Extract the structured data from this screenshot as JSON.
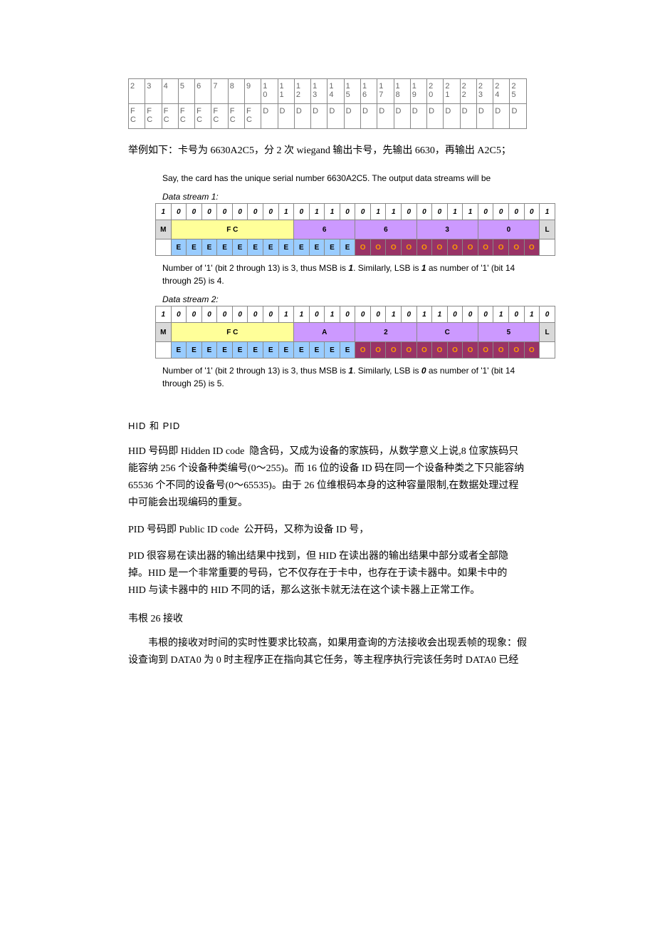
{
  "colors": {
    "bg_white": "#ffffff",
    "bg_grey": "#d9d9d9",
    "bg_yellow": "#ffff99",
    "bg_violet": "#cc99ff",
    "bg_blue": "#99ccff",
    "bg_magenta": "#993366",
    "fg_magenta_text": "#ff9900",
    "table_border": "#888888",
    "text_grey": "#666666"
  },
  "outline_table": {
    "row1": [
      "2",
      "3",
      "4",
      "5",
      "6",
      "7",
      "8",
      "9",
      "1\n0",
      "1\n1",
      "1\n2",
      "1\n3",
      "1\n4",
      "1\n5",
      "1\n6",
      "1\n7",
      "1\n8",
      "1\n9",
      "2\n0",
      "2\n1",
      "2\n2",
      "2\n3",
      "2\n4",
      "2\n5"
    ],
    "row2": [
      "F\nC",
      "F\nC",
      "F\nC",
      "F\nC",
      "F\nC",
      "F\nC",
      "F\nC",
      "F\nC",
      "D",
      "D",
      "D",
      "D",
      "D",
      "D",
      "D",
      "D",
      "D",
      "D",
      "D",
      "D",
      "D",
      "D",
      "D",
      "D"
    ]
  },
  "intro_cjk": "举例如下：卡号为 6630A2C5，分 2 次 wiegand 输出卡号，先输出 6630，再输出 A2C5；",
  "sans_intro": "Say, the card has the unique serial number 6630A2C5.   The output data streams will be",
  "stream1": {
    "label": "Data stream 1:",
    "bits": [
      "1",
      "0",
      "0",
      "0",
      "0",
      "0",
      "0",
      "0",
      "1",
      "0",
      "1",
      "1",
      "0",
      "0",
      "1",
      "1",
      "0",
      "0",
      "0",
      "1",
      "1",
      "0",
      "0",
      "0",
      "0",
      "1"
    ],
    "groups": [
      {
        "text": "M",
        "span": 1,
        "bg": "bg_grey"
      },
      {
        "text": "F C",
        "span": 8,
        "bg": "bg_yellow"
      },
      {
        "text": "6",
        "span": 4,
        "bg": "bg_violet"
      },
      {
        "text": "6",
        "span": 4,
        "bg": "bg_violet"
      },
      {
        "text": "3",
        "span": 4,
        "bg": "bg_violet"
      },
      {
        "text": "0",
        "span": 4,
        "bg": "bg_violet"
      },
      {
        "text": "L",
        "span": 1,
        "bg": "bg_grey"
      }
    ],
    "eo": {
      "lead_span": 1,
      "e_count": 12,
      "o_count": 12,
      "trail_span": 1
    },
    "note_pre": "Number of '1' (bit 2 through 13) is 3, thus MSB is ",
    "note_msb": "1",
    "note_mid": ".   Similarly, LSB is ",
    "note_lsb": "1",
    "note_post": " as number of '1' (bit 14 through 25) is 4."
  },
  "stream2": {
    "label": "Data stream 2:",
    "bits": [
      "1",
      "0",
      "0",
      "0",
      "0",
      "0",
      "0",
      "0",
      "1",
      "1",
      "0",
      "1",
      "0",
      "0",
      "0",
      "1",
      "0",
      "1",
      "1",
      "0",
      "0",
      "0",
      "1",
      "0",
      "1",
      "0"
    ],
    "groups": [
      {
        "text": "M",
        "span": 1,
        "bg": "bg_grey"
      },
      {
        "text": "F C",
        "span": 8,
        "bg": "bg_yellow"
      },
      {
        "text": "A",
        "span": 4,
        "bg": "bg_violet"
      },
      {
        "text": "2",
        "span": 4,
        "bg": "bg_violet"
      },
      {
        "text": "C",
        "span": 4,
        "bg": "bg_violet"
      },
      {
        "text": "5",
        "span": 4,
        "bg": "bg_violet"
      },
      {
        "text": "L",
        "span": 1,
        "bg": "bg_grey"
      }
    ],
    "eo": {
      "lead_span": 1,
      "e_count": 12,
      "o_count": 12,
      "trail_span": 1
    },
    "note_pre": "Number of '1' (bit 2 through 13) is 3, thus MSB is ",
    "note_msb": "1",
    "note_mid": ".   Similarly, LSB is ",
    "note_lsb": "0",
    "note_post": " as number of '1' (bit 14 through 25) is 5."
  },
  "section_hidpid": {
    "heading": "HID 和 PID",
    "p1": "HID 号码即 Hidden ID code  隐含码，又成为设备的家族码，从数学意义上说,8 位家族码只能容纳 256 个设备种类编号(0～255)。而 16 位的设备 ID 码在同一个设备种类之下只能容纳 65536 个不同的设备号(0～65535)。由于 26 位维根码本身的这种容量限制,在数据处理过程中可能会出现编码的重复。",
    "p2": "PID 号码即 Public ID code  公开码，又称为设备 ID 号，",
    "p3": "PID 很容易在读出器的输出结果中找到，但 HID 在读出器的输出结果中部分或者全部隐掉。HID 是一个非常重要的号码，它不仅存在于卡中，也存在于读卡器中。如果卡中的 HID 与读卡器中的 HID 不同的话，那么这张卡就无法在这个读卡器上正常工作。"
  },
  "section_recv": {
    "heading": "韦根 26 接收",
    "p1": "韦根的接收对时间的实时性要求比较高，如果用查询的方法接收会出现丢帧的现象：假设查询到 DATA0 为 0 时主程序正在指向其它任务，等主程序执行完该任务时 DATA0 已经"
  }
}
